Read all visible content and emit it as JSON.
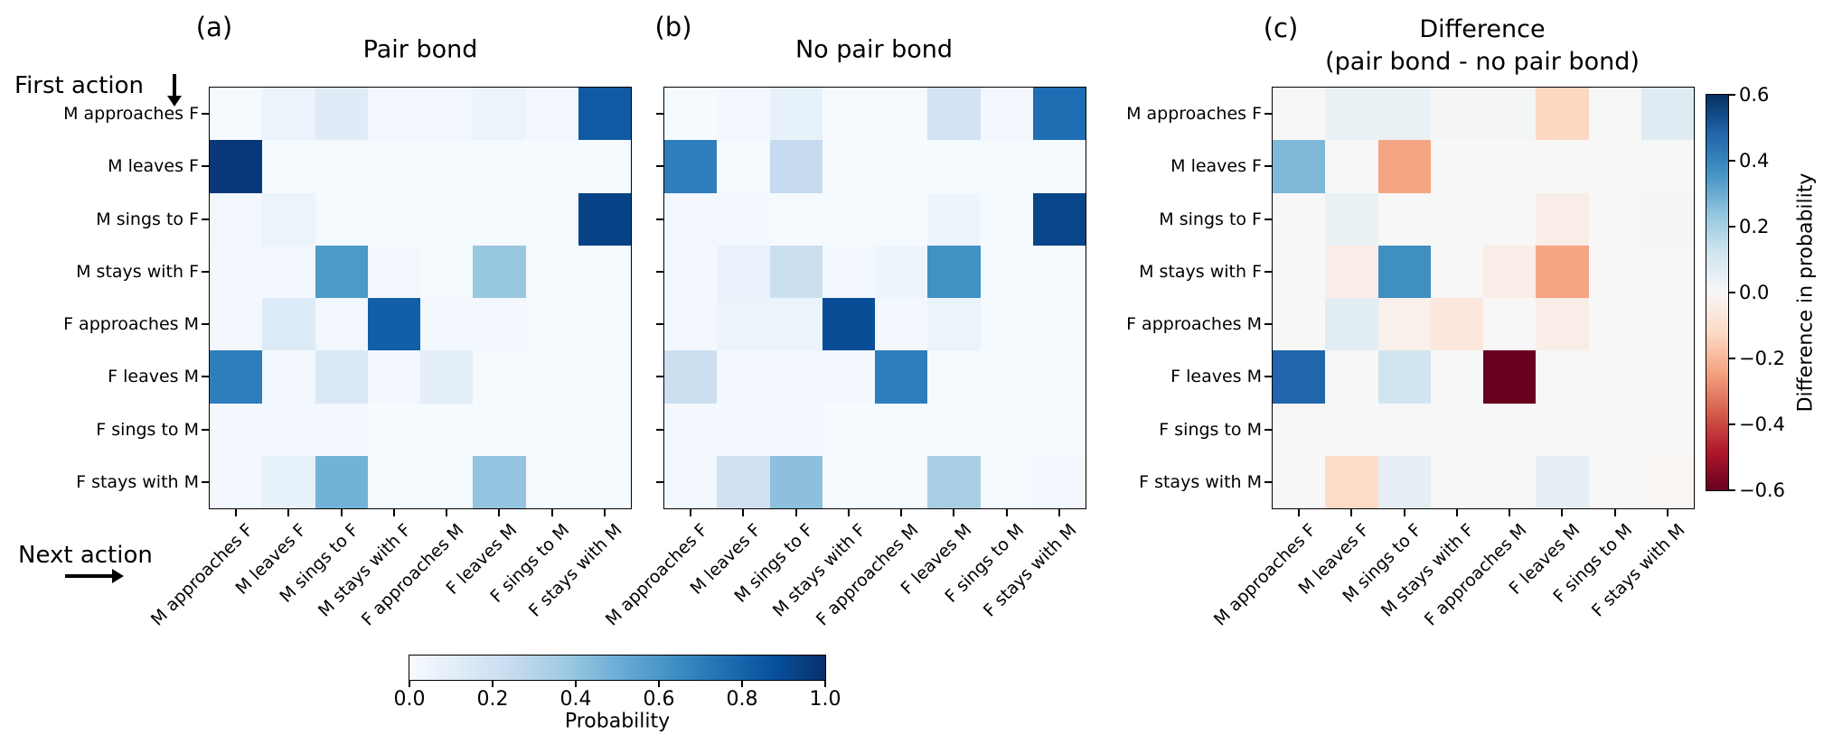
{
  "annotations": {
    "first_action_label": "First action",
    "next_action_label": "Next action"
  },
  "actions": [
    "M approaches F",
    "M leaves F",
    "M sings to F",
    "M stays with F",
    "F approaches M",
    "F leaves M",
    "F sings to M",
    "F stays with M"
  ],
  "colorbars": {
    "probability": {
      "label": "Probability",
      "ticks": [
        "0.0",
        "0.2",
        "0.4",
        "0.6",
        "0.8",
        "1.0"
      ],
      "colormap": "Blues",
      "range": [
        0,
        1
      ]
    },
    "difference": {
      "label": "Difference in probability",
      "ticks": [
        "0.6",
        "0.4",
        "0.2",
        "0.0",
        "−0.2",
        "−0.4",
        "−0.6"
      ],
      "colormap": "RdBu",
      "range": [
        -0.6,
        0.6
      ]
    }
  },
  "chart_data": [
    {
      "type": "heatmap",
      "panel_label": "(a)",
      "title": "Pair bond",
      "subtitle": "",
      "colormap": "Blues",
      "vmin": 0,
      "vmax": 1,
      "xlabel": "Next action",
      "ylabel": "First action",
      "colorbar_label": "Probability",
      "show_y_tick_labels": true,
      "x_categories": [
        "M approaches F",
        "M leaves F",
        "M sings to F",
        "M stays with F",
        "F approaches M",
        "F leaves M",
        "F sings to M",
        "F stays with M"
      ],
      "y_categories": [
        "M approaches F",
        "M leaves F",
        "M sings to F",
        "M stays with F",
        "F approaches M",
        "F leaves M",
        "F sings to M",
        "F stays with M"
      ],
      "values": [
        [
          0.01,
          0.06,
          0.12,
          0.02,
          0.02,
          0.06,
          0.02,
          0.84
        ],
        [
          0.97,
          0.01,
          0.01,
          0.01,
          0.01,
          0.01,
          0.01,
          0.01
        ],
        [
          0.03,
          0.06,
          0.01,
          0.01,
          0.01,
          0.01,
          0.01,
          0.93
        ],
        [
          0.02,
          0.03,
          0.59,
          0.02,
          0.01,
          0.39,
          0.01,
          0.01
        ],
        [
          0.02,
          0.13,
          0.03,
          0.82,
          0.02,
          0.02,
          0.01,
          0.01
        ],
        [
          0.7,
          0.02,
          0.14,
          0.02,
          0.1,
          0.01,
          0.01,
          0.01
        ],
        [
          0.02,
          0.02,
          0.02,
          0.01,
          0.01,
          0.01,
          0.01,
          0.01
        ],
        [
          0.02,
          0.08,
          0.48,
          0.01,
          0.01,
          0.4,
          0.01,
          0.01
        ]
      ]
    },
    {
      "type": "heatmap",
      "panel_label": "(b)",
      "title": "No pair bond",
      "subtitle": "",
      "colormap": "Blues",
      "vmin": 0,
      "vmax": 1,
      "xlabel": "Next action",
      "ylabel": "First action",
      "colorbar_label": "Probability",
      "show_y_tick_labels": false,
      "x_categories": [
        "M approaches F",
        "M leaves F",
        "M sings to F",
        "M stays with F",
        "F approaches M",
        "F leaves M",
        "F sings to M",
        "F stays with M"
      ],
      "y_categories": [
        "M approaches F",
        "M leaves F",
        "M sings to F",
        "M stays with F",
        "F approaches M",
        "F leaves M",
        "F sings to M",
        "F stays with M"
      ],
      "values": [
        [
          0.01,
          0.02,
          0.08,
          0.01,
          0.01,
          0.19,
          0.02,
          0.76
        ],
        [
          0.7,
          0.01,
          0.25,
          0.01,
          0.01,
          0.01,
          0.01,
          0.01
        ],
        [
          0.03,
          0.02,
          0.01,
          0.01,
          0.01,
          0.05,
          0.01,
          0.92
        ],
        [
          0.02,
          0.07,
          0.22,
          0.02,
          0.05,
          0.63,
          0.01,
          0.01
        ],
        [
          0.02,
          0.06,
          0.06,
          0.89,
          0.02,
          0.06,
          0.01,
          0.01
        ],
        [
          0.22,
          0.02,
          0.02,
          0.02,
          0.7,
          0.01,
          0.01,
          0.01
        ],
        [
          0.02,
          0.02,
          0.02,
          0.01,
          0.01,
          0.01,
          0.01,
          0.01
        ],
        [
          0.02,
          0.2,
          0.42,
          0.01,
          0.01,
          0.34,
          0.01,
          0.02
        ]
      ]
    },
    {
      "type": "heatmap",
      "panel_label": "(c)",
      "title": "Difference",
      "subtitle": "(pair bond - no pair bond)",
      "colormap": "RdBu",
      "vmin": -0.6,
      "vmax": 0.6,
      "xlabel": "Next action",
      "ylabel": "First action",
      "colorbar_label": "Difference in probability",
      "show_y_tick_labels": true,
      "x_categories": [
        "M approaches F",
        "M leaves F",
        "M sings to F",
        "M stays with F",
        "F approaches M",
        "F leaves M",
        "F sings to M",
        "F stays with M"
      ],
      "y_categories": [
        "M approaches F",
        "M leaves F",
        "M sings to F",
        "M stays with F",
        "F approaches M",
        "F leaves M",
        "F sings to M",
        "F stays with M"
      ],
      "values": [
        [
          0.0,
          0.04,
          0.04,
          0.01,
          0.01,
          -0.13,
          0.0,
          0.08
        ],
        [
          0.27,
          0.0,
          -0.24,
          0.0,
          0.0,
          0.0,
          0.0,
          0.0
        ],
        [
          0.0,
          0.04,
          0.0,
          0.0,
          0.0,
          -0.04,
          0.0,
          0.01
        ],
        [
          0.0,
          -0.04,
          0.37,
          0.0,
          -0.04,
          -0.24,
          0.0,
          0.0
        ],
        [
          0.0,
          0.07,
          -0.03,
          -0.07,
          0.0,
          -0.04,
          0.0,
          0.0
        ],
        [
          0.48,
          0.0,
          0.12,
          0.0,
          -0.6,
          0.0,
          0.0,
          0.0
        ],
        [
          0.0,
          0.0,
          0.0,
          0.0,
          0.0,
          0.0,
          0.0,
          0.0
        ],
        [
          0.0,
          -0.12,
          0.06,
          0.0,
          0.0,
          0.06,
          0.0,
          -0.01
        ]
      ]
    }
  ]
}
